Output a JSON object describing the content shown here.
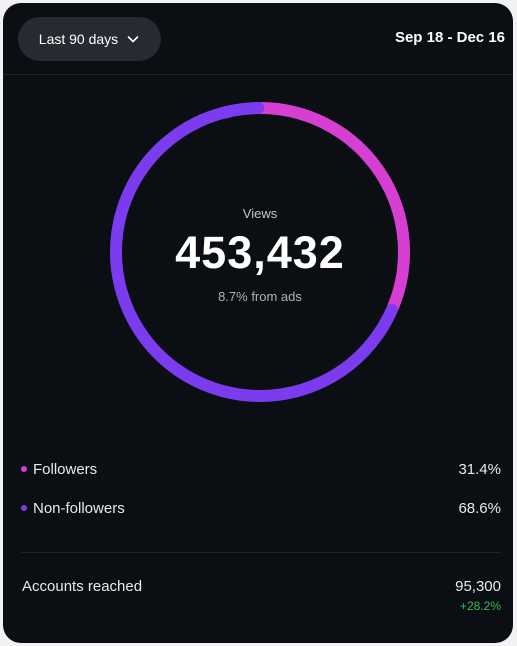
{
  "header": {
    "range_label": "Last 90 days",
    "date_range": "Sep 18 - Dec 16"
  },
  "summary": {
    "label": "Views",
    "value": "453,432",
    "sub": "8.7% from ads"
  },
  "breakdown": {
    "items": [
      {
        "label": "Followers",
        "percent_text": "31.4%",
        "fraction": 0.314,
        "color": "#d63fd2"
      },
      {
        "label": "Non-followers",
        "percent_text": "68.6%",
        "fraction": 0.686,
        "color": "#7b3cf0"
      }
    ]
  },
  "stats": {
    "accounts_reached_label": "Accounts reached",
    "accounts_reached_value": "95,300",
    "accounts_reached_change": "+28.2%",
    "change_color": "#2fbf5a"
  },
  "icons": {
    "dropdown": "chevron-down-icon"
  }
}
